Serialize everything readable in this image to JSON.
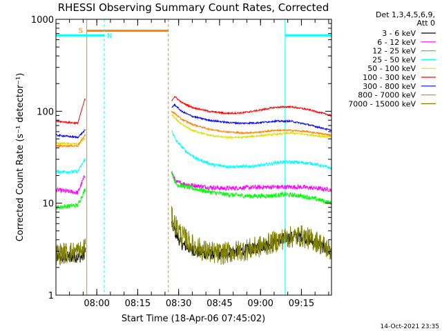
{
  "chart_data": {
    "type": "line",
    "title": "RHESSI Observing Summary Count Rates, Corrected",
    "xlabel": "Start Time (18-Apr-06 07:45:02)",
    "ylabel": "Corrected Count Rate (s⁻¹ detector⁻¹)",
    "yscale": "log",
    "ylim": [
      1,
      1000
    ],
    "xlim_minutes_after_start": [
      0,
      101
    ],
    "x_unit": "minutes after 07:45:02",
    "x_tick_labels": [
      "08:00",
      "08:15",
      "08:30",
      "08:45",
      "09:00",
      "09:15"
    ],
    "x_ticks_minutes": [
      14.97,
      29.97,
      44.97,
      59.97,
      74.97,
      89.97
    ],
    "y_tick_labels": [
      "1",
      "10",
      "100",
      "1000"
    ],
    "y_ticks": [
      1,
      10,
      100,
      1000
    ],
    "grid": false,
    "legend_placement": "outside-right",
    "legend_header": [
      "Det 1,3,4,5,6,9,",
      "Att 0"
    ],
    "timestamp": "14-Oct-2021 23:35",
    "data_gap_minutes": [
      10.8,
      42.4
    ],
    "annotations": {
      "saa": {
        "label": "S",
        "color": "#ff8000",
        "start": 11.3,
        "end": 41.2,
        "bar_level": 750
      },
      "night": [
        {
          "label": "N",
          "color": "#00ffff",
          "start": 0,
          "end": 17.7,
          "bar_level": 670
        },
        {
          "label": "",
          "color": "#00ffff",
          "start": 84.0,
          "end": 101.0,
          "bar_level": 670
        }
      ]
    },
    "series": [
      {
        "name": "3 - 6 keV",
        "color": "#000000",
        "noise": 0.18,
        "x": [
          0,
          10,
          10.6,
          42.4,
          44,
          46,
          50,
          55,
          60,
          66,
          72,
          78,
          84,
          90,
          96,
          101
        ],
        "y": [
          2.6,
          2.6,
          3.0,
          6.0,
          4.6,
          3.6,
          3.1,
          2.8,
          2.8,
          3.0,
          3.2,
          3.6,
          4.2,
          4.4,
          3.6,
          2.9
        ]
      },
      {
        "name": "6 - 12 keV",
        "color": "#ff00ff",
        "noise": 0.07,
        "x": [
          0,
          8,
          10.6,
          42.4,
          44,
          48,
          55,
          62,
          70,
          78,
          84,
          90,
          96,
          101
        ],
        "y": [
          14,
          13,
          20,
          22,
          17,
          16,
          15,
          14.5,
          14.8,
          15,
          15,
          15,
          14.5,
          14
        ]
      },
      {
        "name": "12 - 25 keV",
        "color": "#00ff00",
        "noise": 0.07,
        "x": [
          0,
          8,
          10.6,
          42.4,
          44,
          48,
          55,
          62,
          70,
          78,
          84,
          90,
          96,
          101
        ],
        "y": [
          9,
          9.5,
          14,
          22,
          16,
          15,
          13.5,
          12.5,
          12,
          12,
          12.5,
          12,
          11,
          10
        ]
      },
      {
        "name": "25 - 50 keV",
        "color": "#00ffff",
        "noise": 0.05,
        "x": [
          0,
          8,
          10.6,
          42.4,
          44,
          48,
          52,
          58,
          64,
          70,
          76,
          82,
          88,
          94,
          101
        ],
        "y": [
          22,
          22,
          30,
          62,
          48,
          36,
          30,
          26,
          25,
          25,
          26,
          28,
          28,
          27,
          24
        ]
      },
      {
        "name": "50 - 100 keV",
        "color": "#e0e000",
        "noise": 0.03,
        "x": [
          0,
          8,
          10.6,
          42.4,
          43.5,
          46,
          50,
          56,
          62,
          68,
          74,
          80,
          86,
          92,
          101
        ],
        "y": [
          45,
          44,
          50,
          92,
          85,
          72,
          62,
          55,
          52,
          52,
          54,
          56,
          58,
          56,
          52
        ]
      },
      {
        "name": "100 - 300 keV",
        "color": "#ff0000",
        "noise": 0.025,
        "x": [
          0,
          8,
          10.6,
          42.4,
          43.5,
          46,
          50,
          56,
          62,
          68,
          74,
          80,
          86,
          92,
          101
        ],
        "y": [
          78,
          74,
          135,
          130,
          145,
          125,
          110,
          100,
          95,
          96,
          102,
          110,
          112,
          105,
          90
        ]
      },
      {
        "name": "300 - 800 keV",
        "color": "#0000ff",
        "noise": 0.025,
        "x": [
          0,
          8,
          10.6,
          42.4,
          43.5,
          46,
          50,
          56,
          62,
          68,
          74,
          80,
          86,
          92,
          101
        ],
        "y": [
          55,
          52,
          62,
          110,
          118,
          100,
          88,
          80,
          76,
          74,
          75,
          78,
          78,
          72,
          62
        ]
      },
      {
        "name": "800 - 7000 keV",
        "color": "#ff8000",
        "noise": 0.025,
        "x": [
          0,
          8,
          10.6,
          42.4,
          43.5,
          46,
          50,
          56,
          62,
          68,
          74,
          80,
          86,
          92,
          101
        ],
        "y": [
          42,
          42,
          55,
          100,
          95,
          82,
          72,
          64,
          60,
          58,
          59,
          62,
          62,
          60,
          55
        ]
      },
      {
        "name": "7000 - 15000 keV",
        "color": "#808000",
        "noise": 0.35,
        "x": [
          0,
          10,
          10.6,
          42.4,
          43.5,
          46,
          50,
          55,
          60,
          66,
          72,
          78,
          84,
          90,
          96,
          101
        ],
        "y": [
          2.8,
          3.0,
          3.5,
          7.0,
          6.0,
          4.5,
          3.5,
          3.0,
          2.8,
          3.0,
          3.2,
          3.6,
          4.2,
          4.4,
          3.8,
          3.0
        ]
      }
    ]
  }
}
